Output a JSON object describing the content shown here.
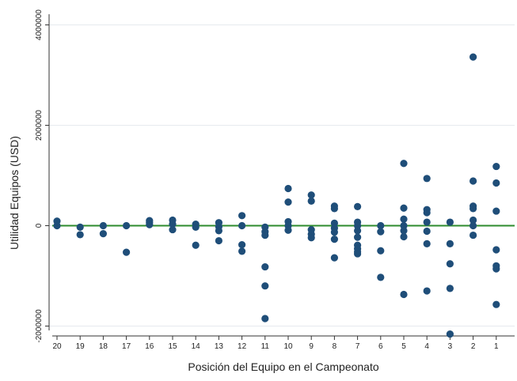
{
  "chart_data": {
    "type": "scatter",
    "xlabel": "Posición del Equipo en el Campeonato",
    "ylabel": "Utilidad Equipos (USD)",
    "x_categories": [
      "20",
      "19",
      "18",
      "17",
      "16",
      "15",
      "14",
      "13",
      "12",
      "11",
      "10",
      "9",
      "8",
      "7",
      "6",
      "5",
      "4",
      "3",
      "2",
      "1"
    ],
    "y_ticks": [
      -2000000,
      0,
      2000000,
      4000000
    ],
    "y_tick_labels": [
      "-2000000",
      "0",
      "2000000",
      "4000000"
    ],
    "ylim": [
      -2250000,
      4400000
    ],
    "grid": true,
    "reference_line": {
      "y": 0,
      "color": "#2e8b2e"
    },
    "marker_color": "#1f4e79",
    "points": [
      {
        "x": "20",
        "y": 90000
      },
      {
        "x": "20",
        "y": 0
      },
      {
        "x": "19",
        "y": -30000
      },
      {
        "x": "19",
        "y": -180000
      },
      {
        "x": "18",
        "y": 0
      },
      {
        "x": "18",
        "y": -160000
      },
      {
        "x": "17",
        "y": 0
      },
      {
        "x": "17",
        "y": -530000
      },
      {
        "x": "16",
        "y": 100000
      },
      {
        "x": "16",
        "y": 60000
      },
      {
        "x": "16",
        "y": 20000
      },
      {
        "x": "15",
        "y": 110000
      },
      {
        "x": "15",
        "y": 30000
      },
      {
        "x": "15",
        "y": -80000
      },
      {
        "x": "14",
        "y": 30000
      },
      {
        "x": "14",
        "y": -30000
      },
      {
        "x": "14",
        "y": -390000
      },
      {
        "x": "13",
        "y": 60000
      },
      {
        "x": "13",
        "y": -20000
      },
      {
        "x": "13",
        "y": -100000
      },
      {
        "x": "13",
        "y": -300000
      },
      {
        "x": "12",
        "y": 200000
      },
      {
        "x": "12",
        "y": 0
      },
      {
        "x": "12",
        "y": -380000
      },
      {
        "x": "12",
        "y": -510000
      },
      {
        "x": "11",
        "y": -30000
      },
      {
        "x": "11",
        "y": -120000
      },
      {
        "x": "11",
        "y": -190000
      },
      {
        "x": "11",
        "y": -820000
      },
      {
        "x": "11",
        "y": -1200000
      },
      {
        "x": "11",
        "y": -1850000
      },
      {
        "x": "10",
        "y": 740000
      },
      {
        "x": "10",
        "y": 470000
      },
      {
        "x": "10",
        "y": 80000
      },
      {
        "x": "10",
        "y": 0
      },
      {
        "x": "10",
        "y": -90000
      },
      {
        "x": "9",
        "y": 610000
      },
      {
        "x": "9",
        "y": 490000
      },
      {
        "x": "9",
        "y": -80000
      },
      {
        "x": "9",
        "y": -170000
      },
      {
        "x": "9",
        "y": -240000
      },
      {
        "x": "8",
        "y": 390000
      },
      {
        "x": "8",
        "y": 340000
      },
      {
        "x": "8",
        "y": 50000
      },
      {
        "x": "8",
        "y": -50000
      },
      {
        "x": "8",
        "y": -130000
      },
      {
        "x": "8",
        "y": -270000
      },
      {
        "x": "8",
        "y": -640000
      },
      {
        "x": "7",
        "y": 380000
      },
      {
        "x": "7",
        "y": 70000
      },
      {
        "x": "7",
        "y": 0
      },
      {
        "x": "7",
        "y": -100000
      },
      {
        "x": "7",
        "y": -230000
      },
      {
        "x": "7",
        "y": -390000
      },
      {
        "x": "7",
        "y": -460000
      },
      {
        "x": "7",
        "y": -520000
      },
      {
        "x": "7",
        "y": -560000
      },
      {
        "x": "6",
        "y": 0
      },
      {
        "x": "6",
        "y": -120000
      },
      {
        "x": "6",
        "y": -500000
      },
      {
        "x": "6",
        "y": -1030000
      },
      {
        "x": "5",
        "y": 1240000
      },
      {
        "x": "5",
        "y": 350000
      },
      {
        "x": "5",
        "y": 130000
      },
      {
        "x": "5",
        "y": 0
      },
      {
        "x": "5",
        "y": -100000
      },
      {
        "x": "5",
        "y": -220000
      },
      {
        "x": "5",
        "y": -1370000
      },
      {
        "x": "4",
        "y": 940000
      },
      {
        "x": "4",
        "y": 320000
      },
      {
        "x": "4",
        "y": 260000
      },
      {
        "x": "4",
        "y": 70000
      },
      {
        "x": "4",
        "y": -110000
      },
      {
        "x": "4",
        "y": -360000
      },
      {
        "x": "4",
        "y": -1300000
      },
      {
        "x": "3",
        "y": 70000
      },
      {
        "x": "3",
        "y": -360000
      },
      {
        "x": "3",
        "y": -760000
      },
      {
        "x": "3",
        "y": -1250000
      },
      {
        "x": "3",
        "y": -2160000
      },
      {
        "x": "2",
        "y": 3360000
      },
      {
        "x": "2",
        "y": 890000
      },
      {
        "x": "2",
        "y": 390000
      },
      {
        "x": "2",
        "y": 340000
      },
      {
        "x": "2",
        "y": 110000
      },
      {
        "x": "2",
        "y": 0
      },
      {
        "x": "2",
        "y": -190000
      },
      {
        "x": "1",
        "y": 1180000
      },
      {
        "x": "1",
        "y": 850000
      },
      {
        "x": "1",
        "y": 290000
      },
      {
        "x": "1",
        "y": -480000
      },
      {
        "x": "1",
        "y": -800000
      },
      {
        "x": "1",
        "y": -860000
      },
      {
        "x": "1",
        "y": -1570000
      }
    ]
  }
}
